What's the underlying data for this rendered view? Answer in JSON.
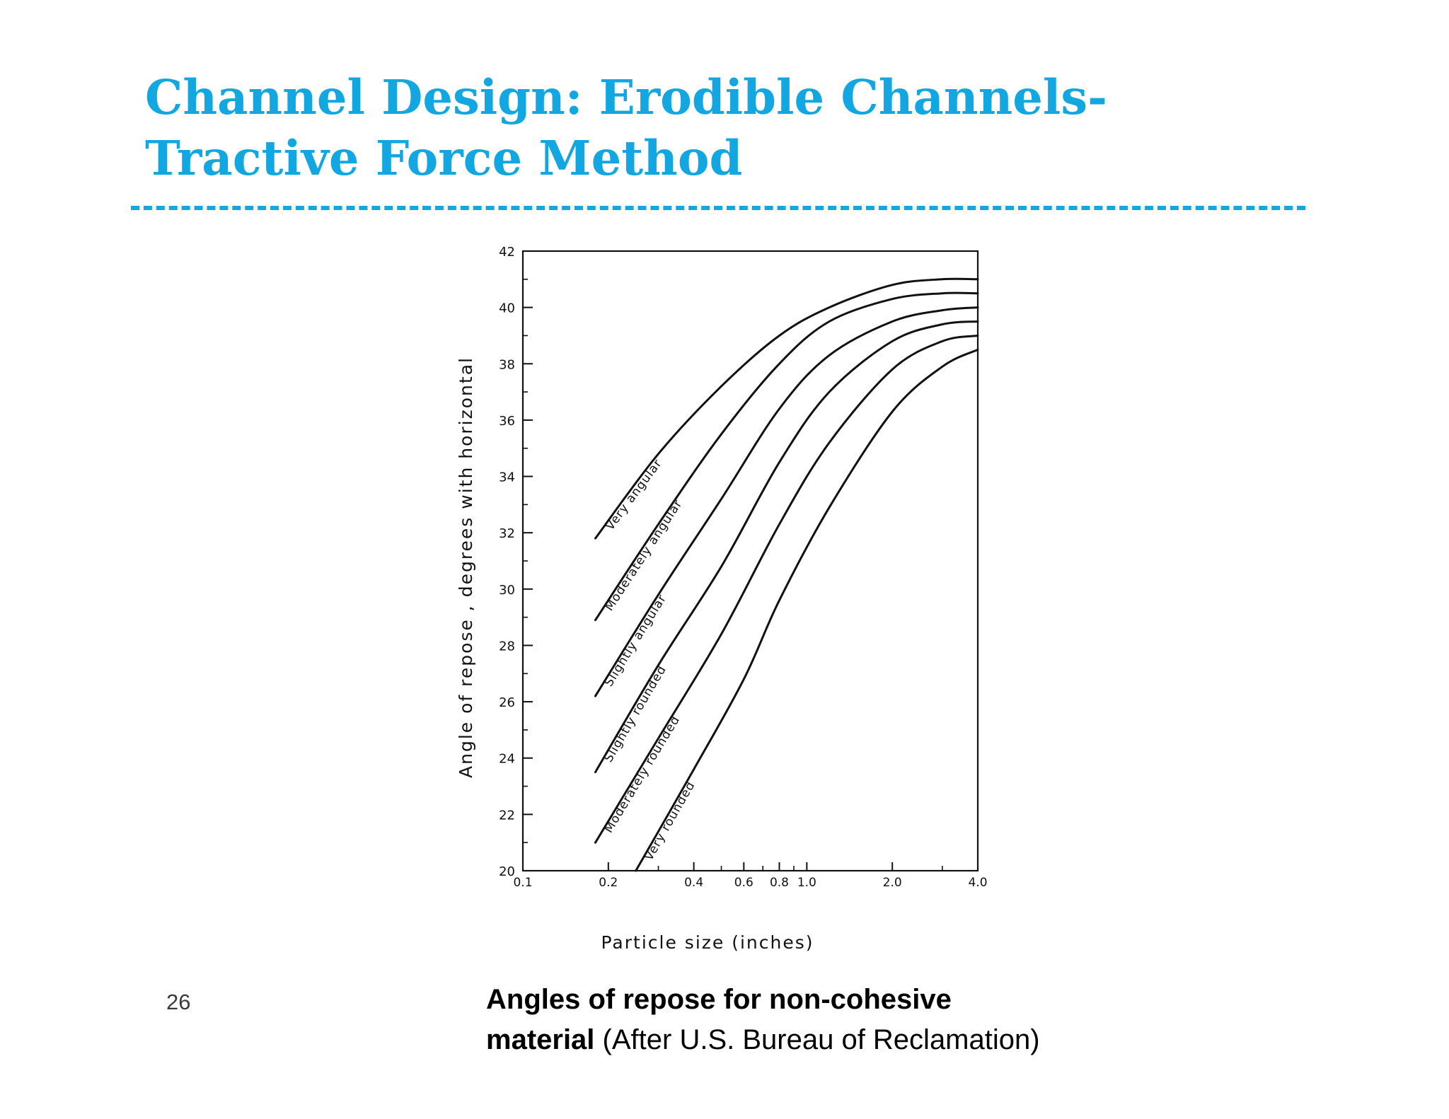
{
  "slide": {
    "title_line1": "Channel Design: Erodible Channels-",
    "title_line2": "Tractive Force Method",
    "page_number": "26",
    "caption_bold_1": "Angles of repose for non-cohesive",
    "caption_bold_2": "material",
    "caption_rest": " (After U.S. Bureau of Reclamation)",
    "accent_color": "#12a7e1"
  },
  "chart_data": {
    "type": "line",
    "title": "",
    "xlabel": "Particle size (inches)",
    "ylabel": "Angle of repose , degrees with horizontal",
    "x_scale": "log",
    "xlim": [
      0.1,
      4.0
    ],
    "ylim": [
      20,
      42
    ],
    "x_ticks": [
      0.1,
      0.2,
      0.4,
      0.6,
      0.8,
      1.0,
      2.0,
      4.0
    ],
    "x_tick_labels": [
      "0.1",
      "0.2",
      "0.4",
      "0.6",
      "0.8",
      "1.0",
      "2.0",
      "4.0"
    ],
    "y_ticks": [
      20,
      22,
      24,
      26,
      28,
      30,
      32,
      34,
      36,
      38,
      40,
      42
    ],
    "y_tick_labels": [
      "20",
      "22",
      "24",
      "26",
      "28",
      "30",
      "32",
      "34",
      "36",
      "38",
      "40",
      "42"
    ],
    "grid": false,
    "legend": "none",
    "series": [
      {
        "name": "Very angular",
        "x": [
          0.18,
          0.3,
          0.5,
          0.8,
          1.2,
          2.0,
          3.0,
          4.0
        ],
        "y": [
          31.8,
          34.8,
          37.2,
          39.0,
          40.0,
          40.8,
          41.0,
          41.0
        ]
      },
      {
        "name": "Moderately angular",
        "x": [
          0.18,
          0.3,
          0.5,
          0.8,
          1.2,
          2.0,
          3.0,
          4.0
        ],
        "y": [
          28.9,
          32.3,
          35.5,
          38.0,
          39.5,
          40.3,
          40.5,
          40.5
        ]
      },
      {
        "name": "Slightly angular",
        "x": [
          0.18,
          0.3,
          0.5,
          0.8,
          1.2,
          2.0,
          3.0,
          4.0
        ],
        "y": [
          26.2,
          29.8,
          33.2,
          36.4,
          38.3,
          39.5,
          39.9,
          40.0
        ]
      },
      {
        "name": "Slightly rounded",
        "x": [
          0.18,
          0.3,
          0.5,
          0.8,
          1.2,
          2.0,
          3.0,
          4.0
        ],
        "y": [
          23.5,
          27.3,
          30.8,
          34.5,
          37.0,
          38.8,
          39.4,
          39.5
        ]
      },
      {
        "name": "Moderately rounded",
        "x": [
          0.18,
          0.3,
          0.5,
          0.8,
          1.2,
          2.0,
          3.0,
          4.0
        ],
        "y": [
          21.0,
          24.7,
          28.4,
          32.3,
          35.2,
          37.8,
          38.8,
          39.0
        ]
      },
      {
        "name": "Very rounded",
        "x": [
          0.25,
          0.4,
          0.6,
          0.8,
          1.2,
          2.0,
          3.0,
          4.0
        ],
        "y": [
          20.0,
          23.6,
          26.8,
          29.6,
          32.9,
          36.3,
          37.9,
          38.5
        ]
      }
    ]
  }
}
